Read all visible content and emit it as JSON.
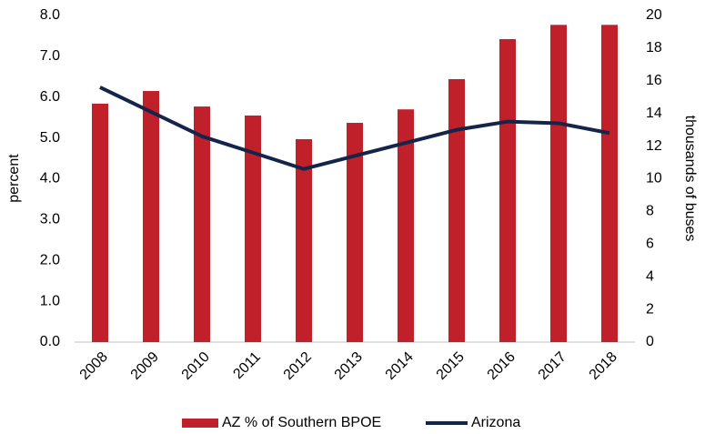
{
  "chart_data": {
    "type": "bar_line",
    "categories": [
      "2008",
      "2009",
      "2010",
      "2011",
      "2012",
      "2013",
      "2014",
      "2015",
      "2016",
      "2017",
      "2018"
    ],
    "series": [
      {
        "name": "AZ % of Southern BPOE",
        "type": "bar",
        "color": "#c0202a",
        "values": [
          5.84,
          6.15,
          5.77,
          5.55,
          4.97,
          5.37,
          5.7,
          6.44,
          7.42,
          7.77,
          7.77
        ]
      },
      {
        "name": "Arizona",
        "type": "line",
        "axis": "y2",
        "color": "#15254a",
        "values": [
          15.6,
          14.1,
          12.6,
          11.6,
          10.6,
          11.4,
          12.2,
          13.0,
          13.5,
          13.4,
          12.8
        ]
      }
    ],
    "ylabel": "percent",
    "y2label": "thousands of buses",
    "ylim": [
      0,
      8
    ],
    "yticks": [
      {
        "value": 0,
        "label": "0.0"
      },
      {
        "value": 1,
        "label": "1.0"
      },
      {
        "value": 2,
        "label": "2.0"
      },
      {
        "value": 3,
        "label": "3.0"
      },
      {
        "value": 4,
        "label": "4.0"
      },
      {
        "value": 5,
        "label": "5.0"
      },
      {
        "value": 6,
        "label": "6.0"
      },
      {
        "value": 7,
        "label": "7.0"
      },
      {
        "value": 8,
        "label": "8.0"
      }
    ],
    "y2lim": [
      0,
      20
    ],
    "y2ticks": [
      0,
      2,
      4,
      6,
      8,
      10,
      12,
      14,
      16,
      18,
      20
    ],
    "legend": "bottom"
  }
}
